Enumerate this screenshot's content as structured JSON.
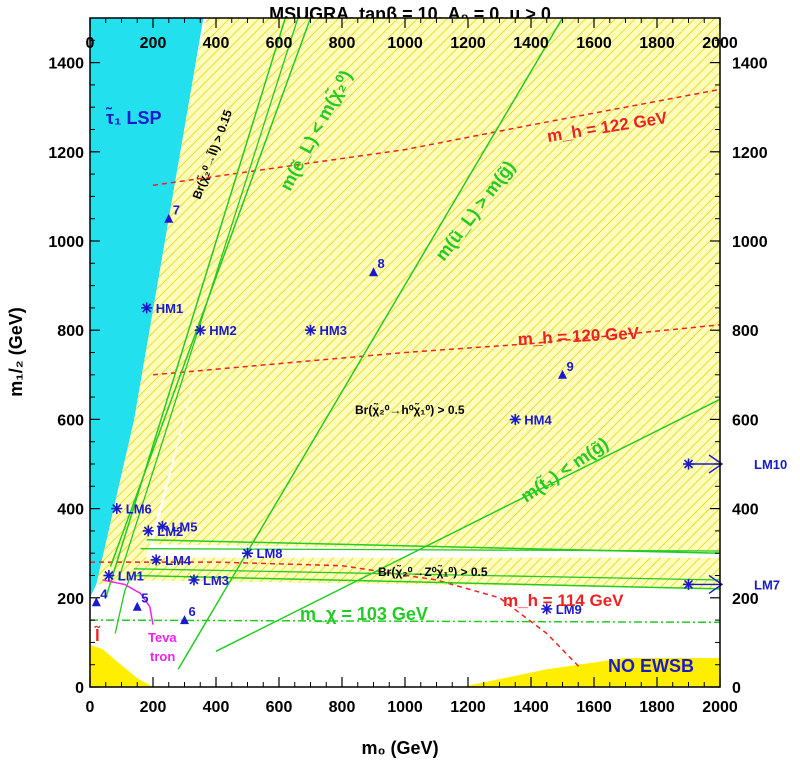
{
  "chart_data": {
    "type": "scatter",
    "title": "MSUGRA, tanβ = 10, A₀ = 0, μ > 0",
    "xlabel": "m₀ (GeV)",
    "ylabel": "m₁/₂ (GeV)",
    "xlim": [
      0,
      2000
    ],
    "ylim": [
      0,
      1500
    ],
    "x_ticks": [
      "0",
      "200",
      "400",
      "600",
      "800",
      "1000",
      "1200",
      "1400",
      "1600",
      "1800",
      "2000"
    ],
    "y_ticks": [
      "0",
      "200",
      "400",
      "600",
      "800",
      "1000",
      "1200",
      "1400"
    ],
    "colors": {
      "lsp_region": "#22e0ee",
      "hatch_region": "#ffffaa",
      "hatch_lines": "#e6c800",
      "ewsb_region": "#ffee00",
      "green_lines": "#22cc22",
      "red_lines": "#ee2222",
      "benchmarks": "#1a1acd",
      "teva": "#ee22ee"
    },
    "region_labels": {
      "lsp": "τ̃₁ LSP",
      "no_ewsb": "NO EWSB",
      "teva": [
        "Teva",
        "tron"
      ],
      "l": "l̃"
    },
    "contours": [
      {
        "label": "m_h = 122 GeV",
        "style": "dashed",
        "color": "red",
        "points": [
          [
            200,
            1125
          ],
          [
            600,
            1165
          ],
          [
            1000,
            1205
          ],
          [
            1400,
            1260
          ],
          [
            2000,
            1340
          ]
        ]
      },
      {
        "label": "m_h = 120 GeV",
        "style": "dashed",
        "color": "red",
        "points": [
          [
            200,
            700
          ],
          [
            600,
            725
          ],
          [
            1000,
            750
          ],
          [
            1400,
            770
          ],
          [
            2000,
            812
          ]
        ]
      },
      {
        "label": "m_h = 114 GeV",
        "style": "dashed",
        "color": "red",
        "points": [
          [
            0,
            280
          ],
          [
            400,
            280
          ],
          [
            800,
            272
          ],
          [
            1100,
            240
          ],
          [
            1300,
            200
          ],
          [
            1450,
            120
          ],
          [
            1560,
            40
          ]
        ]
      },
      {
        "label": "m_χ = 103 GeV",
        "style": "dashdot",
        "color": "green",
        "points": [
          [
            0,
            150
          ],
          [
            2000,
            145
          ]
        ]
      },
      {
        "label": "m(ẽ_L) < m(χ̃₂⁰)",
        "style": "solid",
        "color": "green",
        "points": [
          [
            65,
            270
          ],
          [
            700,
            1500
          ]
        ]
      },
      {
        "label": "m(ũ_L) > m(g̃)",
        "style": "solid",
        "color": "green",
        "points": [
          [
            280,
            40
          ],
          [
            1500,
            1500
          ]
        ]
      },
      {
        "label": "m(t̃₁) < m(g̃)",
        "style": "solid",
        "color": "green",
        "points": [
          [
            400,
            80
          ],
          [
            2000,
            645
          ]
        ]
      },
      {
        "label": "Br(χ̃₂⁰→l̃l) > 0.15",
        "style": "solid",
        "color": "green",
        "points": [
          [
            50,
            200
          ],
          [
            620,
            1500
          ]
        ]
      },
      {
        "label": "Br(χ̃₂⁰→h⁰χ̃₁⁰) > 0.5",
        "style": "solid",
        "color": "green",
        "points": [
          [
            180,
            330
          ],
          [
            2000,
            300
          ]
        ]
      },
      {
        "label": "Br(χ̃₂⁰→Z⁰χ̃₁⁰) > 0.5",
        "style": "solid",
        "color": "green",
        "points": [
          [
            140,
            250
          ],
          [
            2000,
            220
          ]
        ]
      }
    ],
    "benchmarks": [
      {
        "name": "LM1",
        "x": 60,
        "y": 250,
        "marker": "star"
      },
      {
        "name": "LM2",
        "x": 185,
        "y": 350,
        "marker": "star"
      },
      {
        "name": "LM3",
        "x": 330,
        "y": 240,
        "marker": "star"
      },
      {
        "name": "LM4",
        "x": 210,
        "y": 285,
        "marker": "star"
      },
      {
        "name": "LM5",
        "x": 230,
        "y": 360,
        "marker": "star"
      },
      {
        "name": "LM6",
        "x": 85,
        "y": 400,
        "marker": "star"
      },
      {
        "name": "LM7",
        "x": 3000,
        "y": 230,
        "marker": "star"
      },
      {
        "name": "LM8",
        "x": 500,
        "y": 300,
        "marker": "star"
      },
      {
        "name": "LM9",
        "x": 1450,
        "y": 175,
        "marker": "star"
      },
      {
        "name": "LM10",
        "x": 3000,
        "y": 500,
        "marker": "star"
      },
      {
        "name": "HM1",
        "x": 180,
        "y": 850,
        "marker": "star"
      },
      {
        "name": "HM2",
        "x": 350,
        "y": 800,
        "marker": "star"
      },
      {
        "name": "HM3",
        "x": 700,
        "y": 800,
        "marker": "star"
      },
      {
        "name": "HM4",
        "x": 1350,
        "y": 600,
        "marker": "star"
      },
      {
        "name": "4",
        "x": 20,
        "y": 190,
        "marker": "triangle"
      },
      {
        "name": "5",
        "x": 150,
        "y": 180,
        "marker": "triangle"
      },
      {
        "name": "6",
        "x": 300,
        "y": 150,
        "marker": "triangle"
      },
      {
        "name": "7",
        "x": 250,
        "y": 1050,
        "marker": "triangle"
      },
      {
        "name": "8",
        "x": 900,
        "y": 930,
        "marker": "triangle"
      },
      {
        "name": "9",
        "x": 1500,
        "y": 700,
        "marker": "triangle"
      }
    ]
  }
}
